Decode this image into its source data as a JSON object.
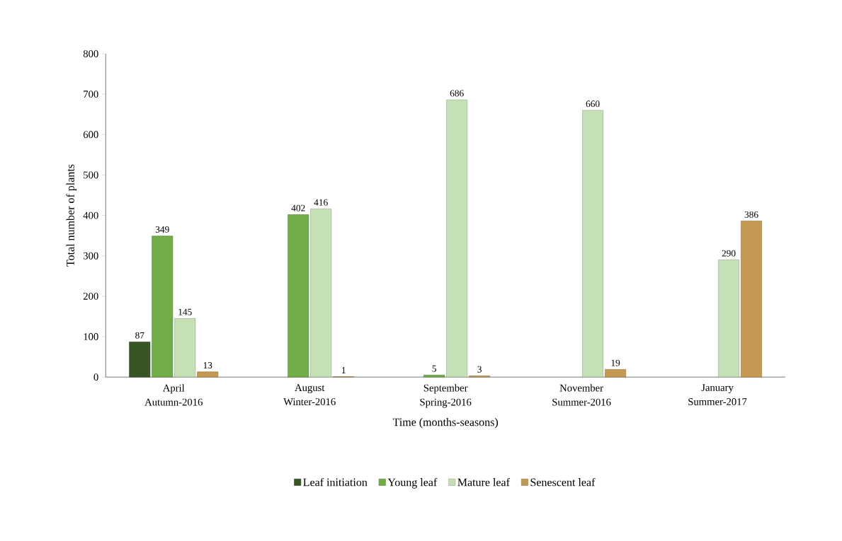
{
  "chart_data": {
    "type": "bar",
    "categories": [
      "April Autumn-2016",
      "August Winter-2016",
      "September Spring-2016",
      "November Summer-2016",
      "January Summer-2017"
    ],
    "series": [
      {
        "name": "Leaf initiation",
        "color": "#375623",
        "values": [
          87,
          null,
          null,
          null,
          null
        ]
      },
      {
        "name": "Young leaf",
        "color": "#70ad47",
        "values": [
          349,
          402,
          5,
          null,
          null
        ]
      },
      {
        "name": "Mature leaf",
        "color": "#c5e0b4",
        "values": [
          145,
          416,
          686,
          660,
          290
        ]
      },
      {
        "name": "Senescent leaf",
        "color": "#c49a52",
        "values": [
          13,
          1,
          3,
          19,
          386
        ]
      }
    ],
    "xlabel": "Time (months-seasons)",
    "ylabel": "Total number of plants",
    "ylim": [
      0,
      800
    ],
    "yticks": [
      0,
      100,
      200,
      300,
      400,
      500,
      600,
      700,
      800
    ],
    "data_labels": true,
    "legend": "bottom",
    "grid": false
  }
}
